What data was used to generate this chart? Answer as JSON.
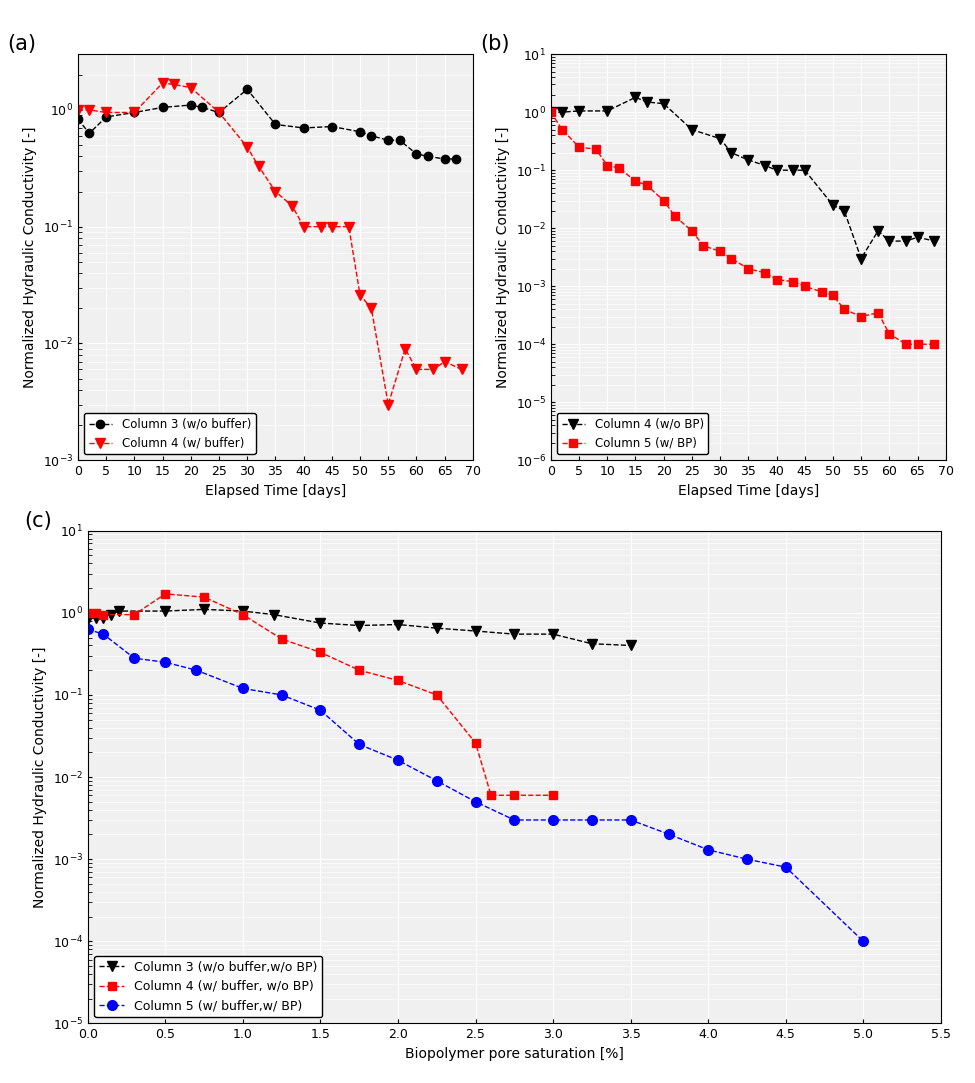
{
  "panel_a": {
    "col3_x": [
      0,
      2,
      5,
      10,
      15,
      20,
      22,
      25,
      30,
      35,
      40,
      45,
      50,
      52,
      55,
      57,
      60,
      62,
      65,
      67
    ],
    "col3_y": [
      0.83,
      0.63,
      0.87,
      0.95,
      1.05,
      1.1,
      1.05,
      0.95,
      1.5,
      0.75,
      0.7,
      0.72,
      0.65,
      0.6,
      0.55,
      0.55,
      0.42,
      0.4,
      0.38,
      0.38
    ],
    "col4_x": [
      0,
      2,
      5,
      10,
      15,
      17,
      20,
      25,
      30,
      32,
      35,
      38,
      40,
      43,
      45,
      48,
      50,
      52,
      55,
      58,
      60,
      63,
      65,
      68
    ],
    "col4_y": [
      1.0,
      1.0,
      0.95,
      0.95,
      1.7,
      1.65,
      1.55,
      0.95,
      0.48,
      0.33,
      0.2,
      0.15,
      0.1,
      0.1,
      0.1,
      0.1,
      0.026,
      0.02,
      0.003,
      0.009,
      0.006,
      0.006,
      0.007,
      0.006
    ],
    "ylim_min": 0.001,
    "ylim_max": 3.0,
    "xlim": [
      0,
      70
    ],
    "xlabel": "Elapsed Time [days]",
    "ylabel": "Normalized Hydraulic Conductivity [-]",
    "legend1": "Column 3 (w/o buffer)",
    "legend2": "Column 4 (w/ buffer)"
  },
  "panel_b": {
    "col4_x": [
      0,
      2,
      5,
      10,
      15,
      17,
      20,
      25,
      30,
      32,
      35,
      38,
      40,
      43,
      45,
      50,
      52,
      55,
      58,
      60,
      63,
      65,
      68
    ],
    "col4_y": [
      1.0,
      1.0,
      1.05,
      1.05,
      1.8,
      1.5,
      1.4,
      0.5,
      0.35,
      0.2,
      0.15,
      0.12,
      0.1,
      0.1,
      0.1,
      0.025,
      0.02,
      0.003,
      0.009,
      0.006,
      0.006,
      0.007,
      0.006
    ],
    "col5_x": [
      0,
      2,
      5,
      8,
      10,
      12,
      15,
      17,
      20,
      22,
      25,
      27,
      30,
      32,
      35,
      38,
      40,
      43,
      45,
      48,
      50,
      52,
      55,
      58,
      60,
      63,
      65,
      68
    ],
    "col5_y": [
      1.0,
      0.5,
      0.25,
      0.23,
      0.12,
      0.11,
      0.065,
      0.055,
      0.03,
      0.016,
      0.009,
      0.005,
      0.004,
      0.003,
      0.002,
      0.0017,
      0.0013,
      0.0012,
      0.001,
      0.0008,
      0.0007,
      0.0004,
      0.0003,
      0.00035,
      0.00015,
      0.0001,
      0.0001,
      0.0001
    ],
    "ylim_min": 1e-06,
    "ylim_max": 10.0,
    "xlim": [
      0,
      70
    ],
    "xlabel": "Elapsed Time [days]",
    "ylabel": "Normalized Hydraulic Conductivity [-]",
    "legend1": "Column 4 (w/o BP)",
    "legend2": "Column 5 (w/ BP)"
  },
  "panel_c": {
    "col3_x": [
      0,
      0.05,
      0.1,
      0.15,
      0.2,
      0.5,
      0.75,
      1.0,
      1.2,
      1.5,
      1.75,
      2.0,
      2.25,
      2.5,
      2.75,
      3.0,
      3.25,
      3.5
    ],
    "col3_y": [
      0.83,
      0.87,
      0.87,
      0.95,
      1.05,
      1.05,
      1.1,
      1.05,
      0.95,
      0.75,
      0.7,
      0.72,
      0.65,
      0.6,
      0.55,
      0.55,
      0.42,
      0.4
    ],
    "col4_x": [
      0,
      0.05,
      0.1,
      0.3,
      0.5,
      0.75,
      1.0,
      1.25,
      1.5,
      1.75,
      2.0,
      2.25,
      2.5,
      2.6,
      2.75,
      3.0
    ],
    "col4_y": [
      1.0,
      1.0,
      0.95,
      0.95,
      1.7,
      1.55,
      0.95,
      0.48,
      0.33,
      0.2,
      0.15,
      0.1,
      0.026,
      0.006,
      0.006,
      0.006
    ],
    "col5_x": [
      0,
      0.1,
      0.3,
      0.5,
      0.7,
      1.0,
      1.25,
      1.5,
      1.75,
      2.0,
      2.25,
      2.5,
      2.75,
      3.0,
      3.25,
      3.5,
      3.75,
      4.0,
      4.25,
      4.5,
      5.0
    ],
    "col5_y": [
      0.63,
      0.55,
      0.28,
      0.25,
      0.2,
      0.12,
      0.1,
      0.065,
      0.025,
      0.016,
      0.009,
      0.005,
      0.003,
      0.003,
      0.003,
      0.003,
      0.002,
      0.0013,
      0.001,
      0.0008,
      0.0001
    ],
    "ylim_min": 1e-05,
    "ylim_max": 10.0,
    "xlim": [
      0,
      5.5
    ],
    "xlabel": "Biopolymer pore saturation [%]",
    "ylabel": "Normalized Hydraulic Conductivity [-]",
    "legend1": "Column 3 (w/o buffer,w/o BP)",
    "legend2": "Column 4 (w/ buffer, w/o BP)",
    "legend3": "Column 5 (w/ buffer,w/ BP)"
  },
  "xticks_ab": [
    0,
    5,
    10,
    15,
    20,
    25,
    30,
    35,
    40,
    45,
    50,
    55,
    60,
    65,
    70
  ],
  "xticks_c": [
    0,
    0.5,
    1.0,
    1.5,
    2.0,
    2.5,
    3.0,
    3.5,
    4.0,
    4.5,
    5.0,
    5.5
  ],
  "colors": {
    "black": "#000000",
    "red": "#FF0000",
    "blue": "#0000FF"
  },
  "bg_color": "#f0f0f0",
  "grid_color": "#ffffff",
  "grid_major_lw": 0.8,
  "grid_minor_lw": 0.5
}
